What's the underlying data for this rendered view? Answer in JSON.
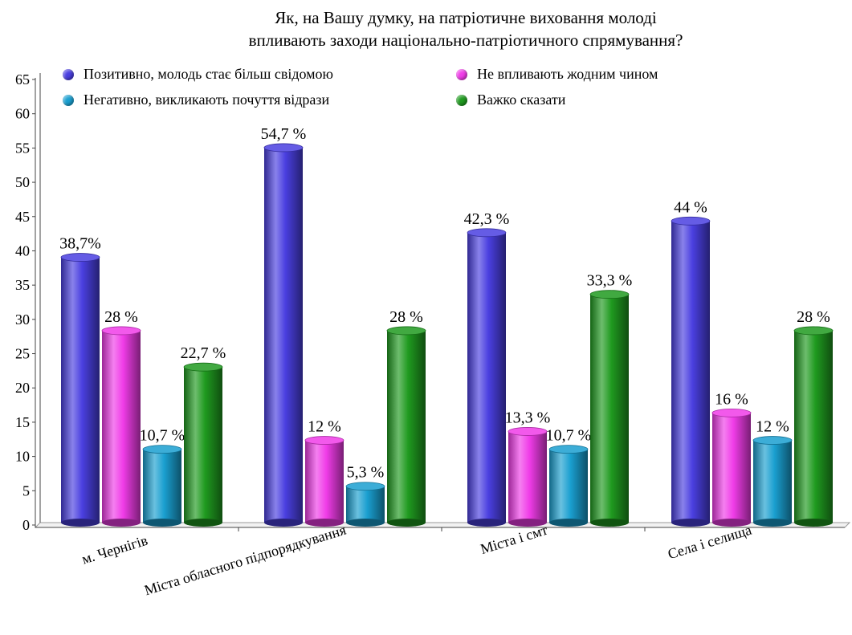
{
  "chart_data": {
    "type": "bar",
    "title_lines": [
      "Як, на Вашу думку, на патріотичне виховання молоді",
      "впливають заходи національно-патріотичного спрямування?"
    ],
    "categories": [
      "м. Чернігів",
      "Міста обласного підпорядкування",
      "Міста і смт",
      "Села і селища"
    ],
    "series": [
      {
        "name": "Позитивно, молодь стає більш свідомою",
        "color": "#4a3fe0",
        "values": [
          38.7,
          54.7,
          42.3,
          44
        ],
        "labels": [
          "38,7%",
          "54,7 %",
          "42,3 %",
          "44 %"
        ]
      },
      {
        "name": "Не впливають жодним чином",
        "color": "#f03ce8",
        "values": [
          28,
          12,
          13.3,
          16
        ],
        "labels": [
          "28 %",
          "12 %",
          "13,3 %",
          "16 %"
        ]
      },
      {
        "name": "Негативно, викликають почуття відрази",
        "color": "#1a9fd0",
        "values": [
          10.7,
          5.3,
          10.7,
          12
        ],
        "labels": [
          "10,7 %",
          "5,3 %",
          "10,7 %",
          "12 %"
        ]
      },
      {
        "name": "Важко сказати",
        "color": "#1f9a1f",
        "values": [
          22.7,
          28,
          33.3,
          28
        ],
        "labels": [
          "22,7 %",
          "28 %",
          "33,3 %",
          "28 %"
        ]
      }
    ],
    "yticks": [
      0,
      5,
      10,
      15,
      20,
      25,
      30,
      35,
      40,
      45,
      50,
      55,
      60,
      65
    ],
    "ylim": [
      0,
      65
    ],
    "grid": false,
    "legend_position": "top"
  }
}
